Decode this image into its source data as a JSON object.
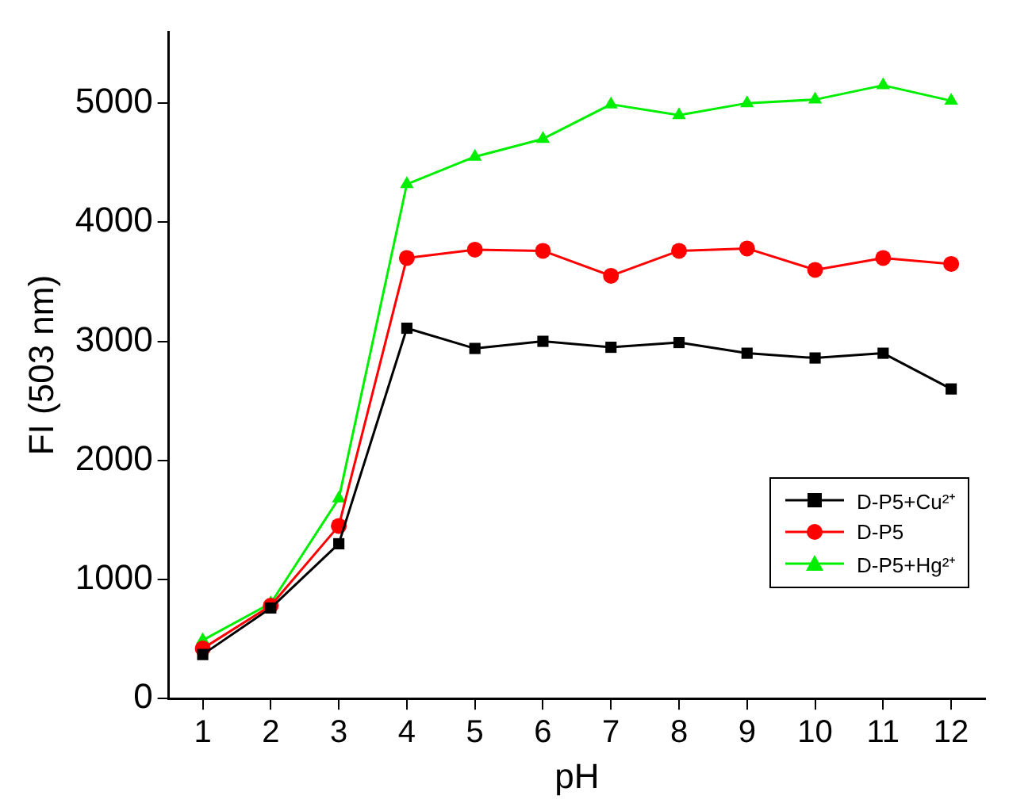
{
  "chart_data": {
    "type": "line",
    "xlabel": "pH",
    "ylabel": "FI (503 nm)",
    "x": [
      1,
      2,
      3,
      4,
      5,
      6,
      7,
      8,
      9,
      10,
      11,
      12
    ],
    "xlim": [
      0.5,
      12.5
    ],
    "xticks": [
      1,
      2,
      3,
      4,
      5,
      6,
      7,
      8,
      9,
      10,
      11,
      12
    ],
    "ylim": [
      0,
      5600
    ],
    "yticks": [
      0,
      1000,
      2000,
      3000,
      4000,
      5000
    ],
    "grid": false,
    "legend": "bottom right",
    "line_style": "solid",
    "series": [
      {
        "name": "D-P5+Cu²⁺",
        "color": "#000000",
        "marker": "square",
        "values": [
          370,
          760,
          1300,
          3110,
          2940,
          3000,
          2950,
          2990,
          2900,
          2860,
          2900,
          2600
        ]
      },
      {
        "name": "D-P5",
        "color": "#ff0000",
        "marker": "circle",
        "values": [
          420,
          780,
          1450,
          3700,
          3770,
          3760,
          3550,
          3760,
          3780,
          3600,
          3700,
          3650
        ]
      },
      {
        "name": "D-P5+Hg²⁺",
        "color": "#00ee00",
        "marker": "triangle",
        "values": [
          490,
          800,
          1680,
          4320,
          4550,
          4700,
          4990,
          4900,
          5000,
          5030,
          5150,
          5020
        ]
      }
    ]
  }
}
